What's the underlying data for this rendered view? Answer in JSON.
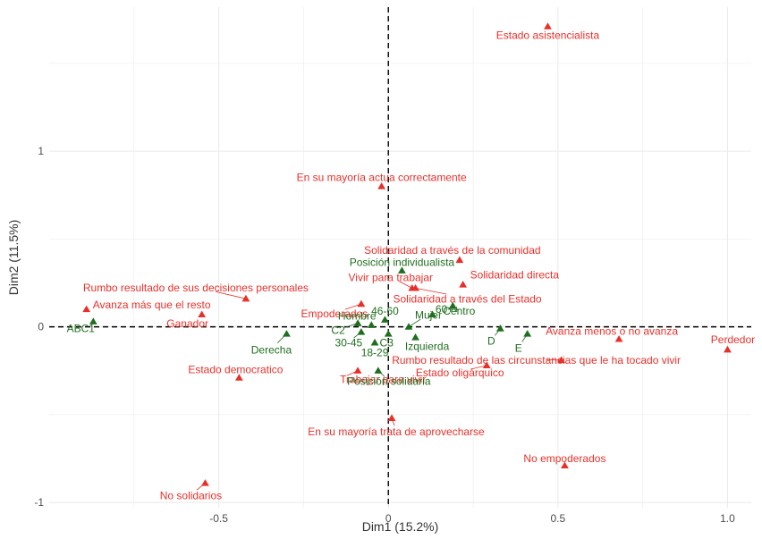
{
  "chart_data": {
    "type": "scatter",
    "title": "",
    "xlabel": "Dim1 (15.2%)",
    "ylabel": "Dim2 (11.5%)",
    "xlim": [
      -1.0,
      1.07
    ],
    "ylim": [
      -1.03,
      1.82
    ],
    "xticks": [
      -0.5,
      0,
      0.5,
      1.0
    ],
    "xtick_labels": [
      "-0.5",
      "0",
      "0.5",
      "1.0"
    ],
    "yticks": [
      -1,
      0,
      1
    ],
    "ytick_labels": [
      "-1",
      "0",
      "1"
    ],
    "grid": true,
    "reference_lines": {
      "x": 0,
      "y": 0,
      "style": "dashed"
    },
    "colors": {
      "red": "#e8302a",
      "green": "#1f6e1f",
      "grid": "#ebebeb",
      "refline": "#000000"
    },
    "series": [
      {
        "color": "red",
        "points": [
          {
            "x": 0.47,
            "y": 1.71,
            "label": "Estado asistencialista"
          },
          {
            "x": -0.02,
            "y": 0.8,
            "label": "En su mayoría actua correctamente"
          },
          {
            "x": 0.21,
            "y": 0.38,
            "label": "Solidaridad a través de la comunidad"
          },
          {
            "x": 0.22,
            "y": 0.24,
            "label": "Solidaridad directa"
          },
          {
            "x": 0.07,
            "y": 0.22,
            "label": "Vivir para trabajar"
          },
          {
            "x": 0.08,
            "y": 0.22,
            "label": "Solidaridad a través del Estado"
          },
          {
            "x": -0.42,
            "y": 0.16,
            "label": "Rumbo resultado de sus decisiones personales"
          },
          {
            "x": -0.89,
            "y": 0.1,
            "label": "Avanza más que el resto"
          },
          {
            "x": -0.55,
            "y": 0.07,
            "label": "Ganador"
          },
          {
            "x": -0.08,
            "y": 0.13,
            "label": "Empoderados"
          },
          {
            "x": 0.68,
            "y": -0.07,
            "label": "Avanza menos o no avanza"
          },
          {
            "x": 1.0,
            "y": -0.13,
            "label": "Perdedor"
          },
          {
            "x": 0.51,
            "y": -0.19,
            "label": "Rumbo resultado de las circunstancias que le ha tocado vivir"
          },
          {
            "x": 0.29,
            "y": -0.22,
            "label": "Estado oligárquico"
          },
          {
            "x": -0.44,
            "y": -0.29,
            "label": "Estado democratico"
          },
          {
            "x": -0.09,
            "y": -0.25,
            "label": "Trabajar para vivir"
          },
          {
            "x": 0.01,
            "y": -0.52,
            "label": "En su mayoría trata de aprovecharse"
          },
          {
            "x": 0.52,
            "y": -0.79,
            "label": "No empoderados"
          },
          {
            "x": -0.54,
            "y": -0.89,
            "label": "No solidarios"
          }
        ]
      },
      {
        "color": "green",
        "points": [
          {
            "x": 0.04,
            "y": 0.32,
            "label": "Posición individualista"
          },
          {
            "x": 0.13,
            "y": 0.07,
            "label": "60++"
          },
          {
            "x": 0.06,
            "y": 0.0,
            "label": "Mujer"
          },
          {
            "x": -0.01,
            "y": 0.04,
            "label": "46-60"
          },
          {
            "x": -0.05,
            "y": 0.01,
            "label": "Hombre"
          },
          {
            "x": 0.19,
            "y": 0.12,
            "label": "Centro"
          },
          {
            "x": -0.87,
            "y": 0.03,
            "label": "ABC1"
          },
          {
            "x": -0.3,
            "y": -0.04,
            "label": "Derecha"
          },
          {
            "x": -0.09,
            "y": 0.02,
            "label": "C2"
          },
          {
            "x": -0.08,
            "y": -0.03,
            "label": "30-45"
          },
          {
            "x": 0.0,
            "y": -0.04,
            "label": "C3"
          },
          {
            "x": 0.08,
            "y": -0.06,
            "label": "Izquierda"
          },
          {
            "x": 0.33,
            "y": -0.01,
            "label": "D"
          },
          {
            "x": 0.41,
            "y": -0.04,
            "label": "E"
          },
          {
            "x": -0.04,
            "y": -0.09,
            "label": "18-29"
          },
          {
            "x": -0.03,
            "y": -0.25,
            "label": "Posición solidaria"
          }
        ]
      }
    ]
  }
}
